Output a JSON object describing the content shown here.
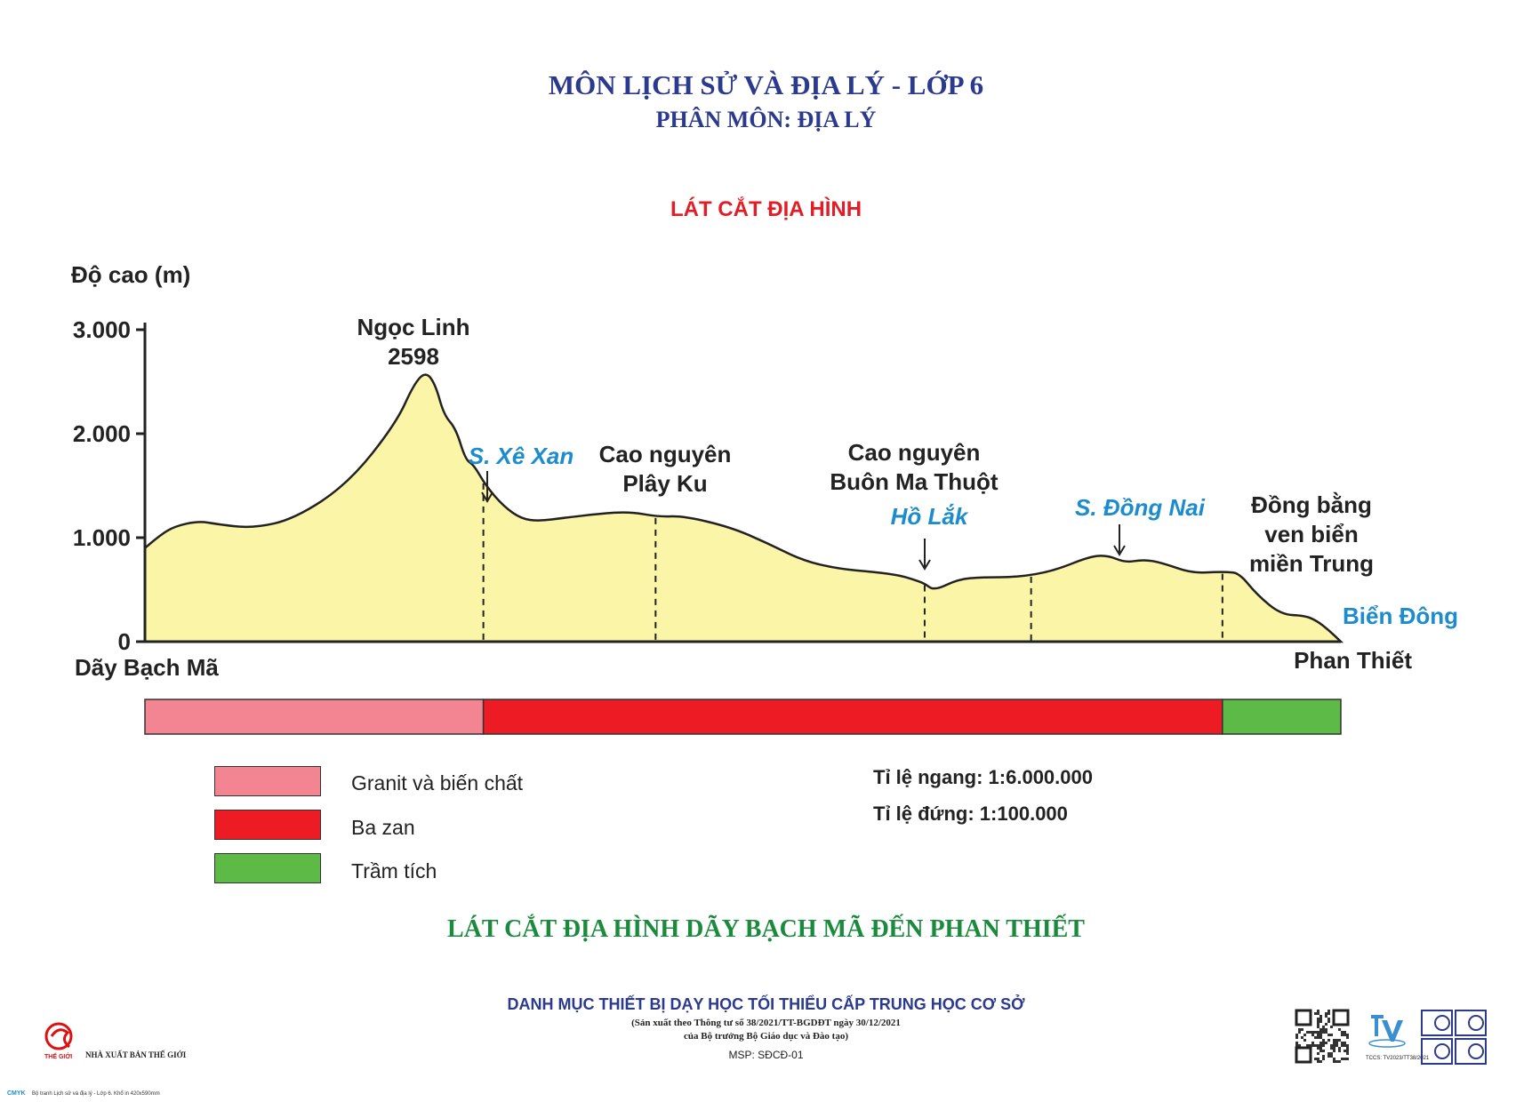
{
  "header": {
    "subject": "MÔN LỊCH SỬ VÀ ĐỊA LÝ - LỚP 6",
    "branch": "PHÂN MÔN: ĐỊA LÝ",
    "section": "LÁT CẮT ĐỊA HÌNH"
  },
  "chart_data": {
    "type": "area",
    "ylabel": "Độ cao (m)",
    "yticks": [
      "3.000",
      "2.000",
      "1.000",
      "0"
    ],
    "yticks_values": [
      3000,
      2000,
      1000,
      0
    ],
    "ylim": [
      0,
      3000
    ],
    "xlim": [
      0,
      100
    ],
    "x": [
      0,
      1.2,
      2.5,
      4.5,
      6,
      9,
      12.5,
      17,
      21,
      22.5,
      23.5,
      24.3,
      25,
      26,
      26.8,
      27.5,
      28.5,
      30,
      31.5,
      33,
      35,
      38,
      40.5,
      43,
      45,
      49,
      52,
      55,
      58,
      61,
      63,
      64.2,
      65.2,
      66,
      68,
      70,
      73,
      76,
      79,
      80.5,
      82,
      83.5,
      85,
      87.5,
      89.5,
      90.5,
      91.5,
      93,
      95,
      97,
      98,
      99,
      100
    ],
    "y": [
      900,
      1020,
      1110,
      1160,
      1130,
      1090,
      1180,
      1520,
      2100,
      2480,
      2598,
      2470,
      2180,
      2050,
      1750,
      1700,
      1500,
      1300,
      1180,
      1160,
      1190,
      1230,
      1250,
      1200,
      1210,
      1100,
      950,
      780,
      700,
      670,
      640,
      600,
      560,
      490,
      600,
      620,
      620,
      680,
      820,
      830,
      760,
      790,
      760,
      660,
      670,
      670,
      660,
      450,
      260,
      250,
      200,
      110,
      0
    ],
    "dividers": [
      28.3,
      42.7,
      65.2,
      74.1,
      90.1
    ],
    "start_label": "Dãy Bạch Mã",
    "end_label": "Phan Thiết",
    "annotations": {
      "peak_name": "Ngọc Linh",
      "peak_value": "2598",
      "plateau1_line1": "Cao nguyên",
      "plateau1_line2": "Plây Ku",
      "plateau2_line1": "Cao nguyên",
      "plateau2_line2": "Buôn Ma Thuột",
      "plain_line1": "Đồng bằng",
      "plain_line2": "ven biển",
      "plain_line3": "miền Trung"
    },
    "water_labels": {
      "river1": "S. Xê Xan",
      "lake": "Hồ Lắk",
      "river2": "S. Đồng Nai",
      "sea": "Biển Đông"
    },
    "geology_segments": [
      {
        "from": 0,
        "to": 28.3,
        "color": "#f38592"
      },
      {
        "from": 28.3,
        "to": 90.1,
        "color": "#ed1c24"
      },
      {
        "from": 90.1,
        "to": 100,
        "color": "#5dba47"
      }
    ],
    "colors": {
      "terrain_fill": "#fbf5a8",
      "water_text": "#1c8ccd",
      "granite": "#f38592",
      "basalt": "#ed1c24",
      "sediment": "#5dba47"
    }
  },
  "legend": [
    {
      "label": "Granit và biến chất",
      "color": "#f38592"
    },
    {
      "label": "Ba zan",
      "color": "#ed1c24"
    },
    {
      "label": "Trầm tích",
      "color": "#5dba47"
    }
  ],
  "scales": {
    "horizontal": "Tỉ lệ ngang: 1:6.000.000",
    "vertical": "Tỉ lệ đứng: 1:100.000"
  },
  "main_title": "LÁT CẮT ĐỊA HÌNH DÃY BẠCH MÃ ĐẾN PHAN THIẾT",
  "footer": {
    "title": "DANH MỤC THIẾT BỊ DẠY HỌC TỐI THIỂU CẤP TRUNG HỌC CƠ SỞ",
    "sub1": "(Sản xuất theo Thông tư số 38/2021/TT-BGDĐT ngày 30/12/2021",
    "sub2": "của Bộ trưởng Bộ Giáo dục và Đào tạo)",
    "msp": "MSP: SĐCĐ-01",
    "publisher": "NHÀ XUẤT BẢN THẾ GIỚI",
    "publisher_logo_text": "THẾ GIỚI",
    "tccs": "TCCS: TV2023/TT38/2021",
    "print_note": "Bộ tranh Lịch sử và địa lý - Lớp 6. Khổ in 420x590mm",
    "cmyk": "CMYK"
  }
}
